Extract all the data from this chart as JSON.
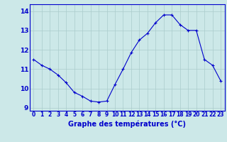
{
  "x": [
    0,
    1,
    2,
    3,
    4,
    5,
    6,
    7,
    8,
    9,
    10,
    11,
    12,
    13,
    14,
    15,
    16,
    17,
    18,
    19,
    20,
    21,
    22,
    23
  ],
  "y": [
    11.5,
    11.2,
    11.0,
    10.7,
    10.3,
    9.8,
    9.6,
    9.35,
    9.3,
    9.35,
    10.2,
    11.0,
    11.85,
    12.5,
    12.85,
    13.4,
    13.8,
    13.8,
    13.3,
    13.0,
    13.0,
    11.5,
    11.2,
    10.4
  ],
  "xlabel": "Graphe des températures (°C)",
  "xlim": [
    -0.5,
    23.5
  ],
  "ylim": [
    8.85,
    14.35
  ],
  "yticks": [
    9,
    10,
    11,
    12,
    13,
    14
  ],
  "xticks": [
    0,
    1,
    2,
    3,
    4,
    5,
    6,
    7,
    8,
    9,
    10,
    11,
    12,
    13,
    14,
    15,
    16,
    17,
    18,
    19,
    20,
    21,
    22,
    23
  ],
  "line_color": "#0000cc",
  "marker": "+",
  "bg_color": "#cce8e8",
  "grid_color": "#aacccc",
  "axis_label_color": "#0000cc",
  "tick_label_color": "#0000cc",
  "spine_color": "#0000cc"
}
